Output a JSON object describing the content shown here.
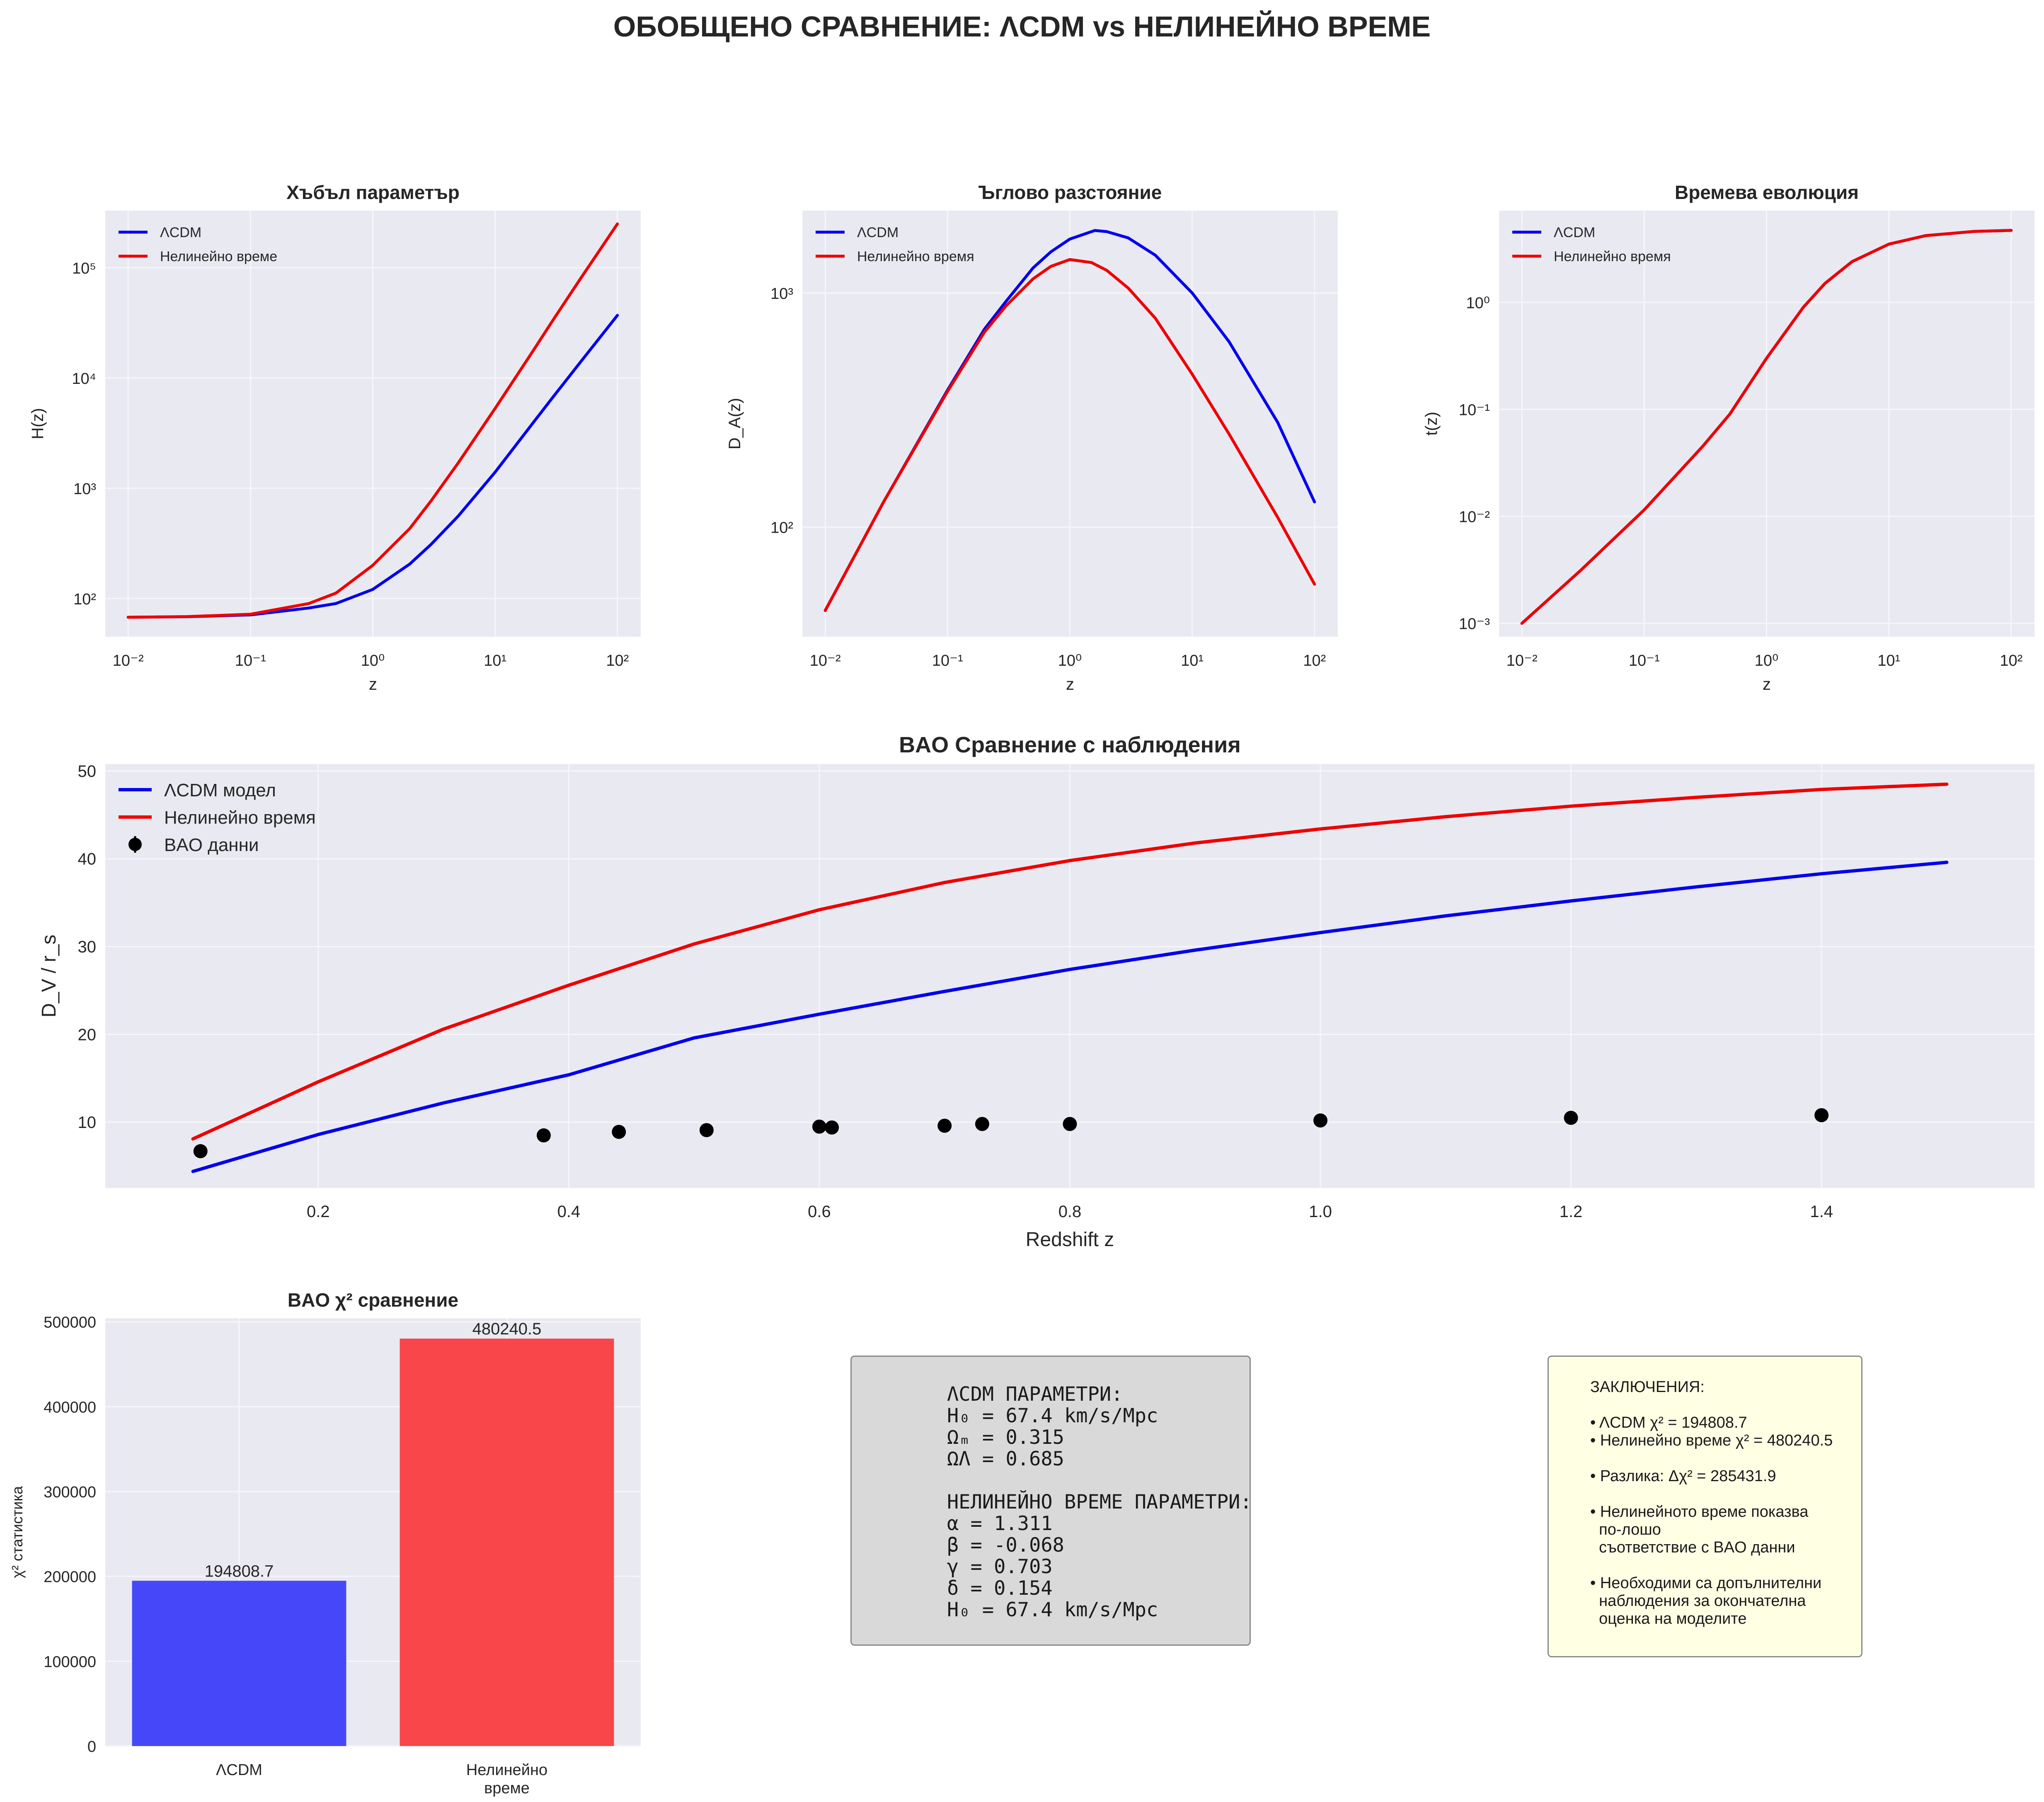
{
  "figure": {
    "title": "ОБОБЩЕНО СРАВНЕНИЕ: ΛCDM vs НЕЛИНЕЙНО ВРЕМЕ"
  },
  "colors": {
    "lcdm": "#0000ee",
    "nonlinear": "#ee0000",
    "data": "#000000",
    "bar_lcdm": "#4747fa",
    "bar_nonlinear": "#f8464b",
    "axes_bg": "#e9e9f1",
    "grid": "#f6f6fa"
  },
  "chart_data": [
    {
      "id": "hubble",
      "type": "line",
      "title": "Хъбъл параметър",
      "xlabel": "z",
      "ylabel": "H(z)",
      "xscale": "log",
      "yscale": "log",
      "xlim": [
        0.0065,
        155
      ],
      "ylim": [
        45,
        330000
      ],
      "xticks": [
        0.01,
        0.1,
        1,
        10,
        100
      ],
      "yticks": [
        100,
        1000,
        10000,
        100000
      ],
      "legend": "top-left",
      "series": [
        {
          "name": "ΛCDM",
          "color_key": "lcdm",
          "x": [
            0.01,
            0.03,
            0.1,
            0.3,
            0.5,
            1,
            2,
            3,
            5,
            10,
            20,
            30,
            50,
            100
          ],
          "y": [
            67.6,
            68.3,
            71.0,
            82.0,
            90.0,
            121,
            205,
            310,
            560,
            1400,
            3800,
            6800,
            14000,
            37000
          ]
        },
        {
          "name": "Нелинейно време",
          "color_key": "nonlinear",
          "x": [
            0.01,
            0.03,
            0.1,
            0.3,
            0.5,
            1,
            2,
            3,
            5,
            10,
            20,
            30,
            50,
            100
          ],
          "y": [
            67.6,
            68.5,
            72.0,
            90.0,
            112,
            200,
            430,
            770,
            1700,
            5300,
            17000,
            34000,
            80000,
            250000
          ]
        }
      ]
    },
    {
      "id": "angular",
      "type": "line",
      "title": "Ъглово разстояние",
      "xlabel": "z",
      "ylabel": "D_A(z)",
      "xscale": "log",
      "yscale": "log",
      "xlim": [
        0.0065,
        155
      ],
      "ylim": [
        34,
        2250
      ],
      "xticks": [
        0.01,
        0.1,
        1,
        10,
        100
      ],
      "yticks": [
        100,
        1000
      ],
      "legend": "top-left",
      "series": [
        {
          "name": "ΛCDM",
          "color_key": "lcdm",
          "x": [
            0.01,
            0.03,
            0.1,
            0.2,
            0.3,
            0.5,
            0.7,
            1,
            1.6,
            2,
            3,
            5,
            10,
            20,
            50,
            100
          ],
          "y": [
            44,
            128,
            385,
            700,
            920,
            1280,
            1500,
            1700,
            1850,
            1830,
            1720,
            1450,
            1000,
            620,
            280,
            128
          ]
        },
        {
          "name": "Нелинейно время",
          "color_key": "nonlinear",
          "x": [
            0.01,
            0.03,
            0.1,
            0.2,
            0.3,
            0.5,
            0.7,
            1,
            1.5,
            2,
            3,
            5,
            10,
            20,
            50,
            100
          ],
          "y": [
            44,
            128,
            380,
            680,
            880,
            1150,
            1300,
            1390,
            1350,
            1250,
            1050,
            780,
            450,
            250,
            110,
            57
          ]
        }
      ]
    },
    {
      "id": "time",
      "type": "line",
      "title": "Времева еволюция",
      "xlabel": "z",
      "ylabel": "t(z)",
      "xscale": "log",
      "yscale": "log",
      "xlim": [
        0.0065,
        155
      ],
      "ylim": [
        0.00075,
        7.2
      ],
      "xticks": [
        0.01,
        0.1,
        1,
        10,
        100
      ],
      "yticks": [
        0.001,
        0.01,
        0.1,
        1
      ],
      "legend": "top-left",
      "series": [
        {
          "name": "ΛCDM",
          "color_key": "lcdm",
          "x": [
            0.01,
            0.03,
            0.1,
            0.3,
            0.5,
            1,
            2,
            3,
            5,
            10,
            20,
            50,
            100
          ],
          "y": [
            0.001,
            0.0031,
            0.0115,
            0.045,
            0.09,
            0.3,
            0.9,
            1.5,
            2.4,
            3.5,
            4.2,
            4.6,
            4.7
          ]
        },
        {
          "name": "Нелинейно время",
          "color_key": "nonlinear",
          "x": [
            0.01,
            0.03,
            0.1,
            0.3,
            0.5,
            1,
            2,
            3,
            5,
            10,
            20,
            50,
            100
          ],
          "y": [
            0.001,
            0.0031,
            0.0115,
            0.045,
            0.09,
            0.3,
            0.9,
            1.5,
            2.4,
            3.5,
            4.2,
            4.6,
            4.7
          ]
        }
      ]
    },
    {
      "id": "bao",
      "type": "line",
      "title": "BAO Сравнение с наблюдения",
      "xlabel": "Redshift z",
      "ylabel": "D_V / r_s",
      "xscale": "linear",
      "yscale": "linear",
      "xlim": [
        0.03,
        1.57
      ],
      "ylim": [
        2.5,
        50.8
      ],
      "xticks": [
        0.2,
        0.4,
        0.6,
        0.8,
        1.0,
        1.2,
        1.4
      ],
      "xtick_labels": [
        "0.2",
        "0.4",
        "0.6",
        "0.8",
        "1.0",
        "1.2",
        "1.4"
      ],
      "yticks": [
        10,
        20,
        30,
        40,
        50
      ],
      "legend": "top-left",
      "series": [
        {
          "name": "ΛCDM модел",
          "color_key": "lcdm",
          "x": [
            0.1,
            0.2,
            0.3,
            0.4,
            0.5,
            0.6,
            0.7,
            0.8,
            0.9,
            1.0,
            1.1,
            1.2,
            1.3,
            1.4,
            1.5
          ],
          "y": [
            4.4,
            8.6,
            12.2,
            15.4,
            19.6,
            22.3,
            24.9,
            27.4,
            29.6,
            31.6,
            33.5,
            35.2,
            36.8,
            38.3,
            39.6
          ]
        },
        {
          "name": "Нелинейно время",
          "color_key": "nonlinear",
          "x": [
            0.1,
            0.2,
            0.3,
            0.4,
            0.5,
            0.6,
            0.7,
            0.8,
            0.9,
            1.0,
            1.1,
            1.2,
            1.3,
            1.4,
            1.5
          ],
          "y": [
            8.1,
            14.6,
            20.6,
            25.6,
            30.3,
            34.2,
            37.3,
            39.8,
            41.8,
            43.4,
            44.8,
            46.0,
            47.0,
            47.9,
            48.5
          ]
        }
      ],
      "points": {
        "name": "BAO данни",
        "color_key": "data",
        "x": [
          0.106,
          0.38,
          0.44,
          0.51,
          0.6,
          0.61,
          0.7,
          0.73,
          0.8,
          1.0,
          1.2,
          1.4
        ],
        "y": [
          6.7,
          8.5,
          8.9,
          9.1,
          9.5,
          9.4,
          9.6,
          9.8,
          9.8,
          10.2,
          10.5,
          10.8
        ]
      }
    },
    {
      "id": "chi2",
      "type": "bar",
      "title": "BAO χ² сравнение",
      "xlabel": "",
      "ylabel": "χ² статистика",
      "ylim": [
        0,
        504252
      ],
      "yticks": [
        0,
        100000,
        200000,
        300000,
        400000,
        500000
      ],
      "categories": [
        [
          "ΛCDM"
        ],
        [
          "Нелинейно",
          "време"
        ]
      ],
      "values": [
        194808.7,
        480240.5
      ],
      "value_labels": [
        "194808.7",
        "480240.5"
      ],
      "bar_color_keys": [
        "bar_lcdm",
        "bar_nonlinear"
      ]
    }
  ],
  "params_box": {
    "lines": [
      "ΛCDM ПАРАМЕТРИ:",
      "H₀ = 67.4 km/s/Mpc",
      "Ωₘ = 0.315",
      "ΩΛ = 0.685",
      "",
      "НЕЛИНЕЙНО ВРЕМЕ ПАРАМЕТРИ:",
      "α = 1.311",
      "β = -0.068",
      "γ = 0.703",
      "δ = 0.154",
      "H₀ = 67.4 km/s/Mpc"
    ]
  },
  "conclusions_box": {
    "lines": [
      "ЗАКЛЮЧЕНИЯ:",
      "",
      "• ΛCDM χ² = 194808.7",
      "• Нелинейно време χ² = 480240.5",
      "",
      "• Разлика: Δχ² = 285431.9",
      "",
      "• Нелинейното време показва",
      "  по-лошо",
      "  съответствие с BAO данни",
      "",
      "• Необходими са допълнителни",
      "  наблюдения за окончателна",
      "  оценка на моделите"
    ]
  }
}
